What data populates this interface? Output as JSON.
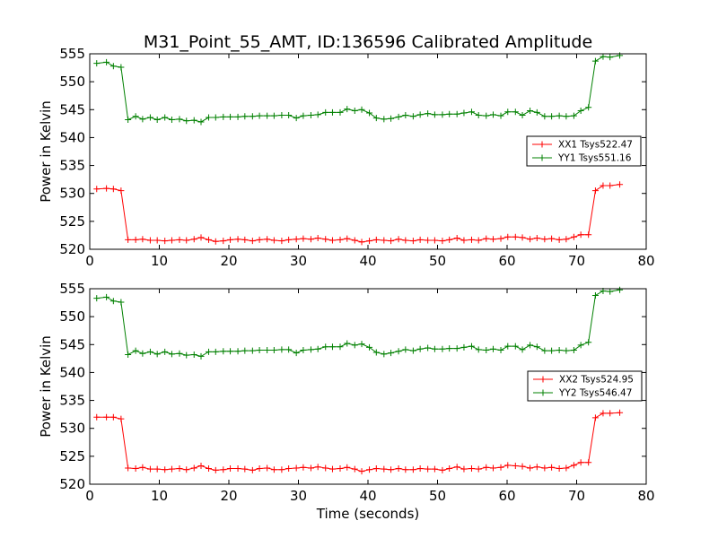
{
  "figure": {
    "title": "M31_Point_55_AMT, ID:136596 Calibrated Amplitude",
    "xlabel": "Time (seconds)"
  },
  "chart_data": [
    {
      "type": "line",
      "xlabel": "",
      "ylabel": "Power in Kelvin",
      "xlim": [
        0,
        80
      ],
      "ylim": [
        520,
        555
      ],
      "xticks": [
        "0",
        "10",
        "20",
        "30",
        "40",
        "50",
        "60",
        "70",
        "80"
      ],
      "yticks": [
        "520",
        "525",
        "530",
        "535",
        "540",
        "545",
        "550",
        "555"
      ],
      "grid": false,
      "legend": "center-right",
      "x": [
        1.0,
        2.4,
        3.4,
        4.5,
        5.5,
        6.6,
        7.6,
        8.7,
        9.7,
        10.8,
        11.8,
        12.9,
        13.9,
        15.0,
        16.0,
        17.1,
        18.1,
        19.2,
        20.2,
        21.3,
        22.3,
        23.4,
        24.4,
        25.5,
        26.5,
        27.6,
        28.6,
        29.7,
        30.7,
        31.8,
        32.8,
        33.9,
        34.9,
        36.0,
        37.0,
        38.1,
        39.1,
        40.2,
        41.2,
        42.3,
        43.3,
        44.4,
        45.4,
        46.5,
        47.5,
        48.6,
        49.6,
        50.7,
        51.7,
        52.8,
        53.8,
        54.9,
        55.9,
        57.0,
        58.0,
        59.1,
        60.1,
        61.2,
        62.2,
        63.3,
        64.3,
        65.4,
        66.4,
        67.5,
        68.5,
        69.6,
        70.6,
        71.7,
        72.7,
        73.8,
        74.8,
        76.2
      ],
      "series": [
        {
          "name": "XX1 Tsys522.47",
          "color": "#ff0000",
          "values": [
            530.8,
            530.9,
            530.8,
            530.5,
            521.7,
            521.7,
            521.8,
            521.6,
            521.6,
            521.5,
            521.6,
            521.7,
            521.6,
            521.8,
            522.1,
            521.7,
            521.4,
            521.5,
            521.7,
            521.8,
            521.7,
            521.5,
            521.7,
            521.8,
            521.6,
            521.5,
            521.7,
            521.8,
            521.9,
            521.8,
            522.0,
            521.8,
            521.6,
            521.7,
            521.9,
            521.6,
            521.3,
            521.5,
            521.7,
            521.6,
            521.5,
            521.8,
            521.6,
            521.5,
            521.7,
            521.6,
            521.6,
            521.5,
            521.7,
            522.0,
            521.6,
            521.7,
            521.6,
            521.9,
            521.8,
            521.9,
            522.2,
            522.2,
            522.1,
            521.8,
            522.0,
            521.8,
            521.9,
            521.7,
            521.8,
            522.2,
            522.6,
            522.6,
            530.5,
            531.4,
            531.4,
            531.6
          ]
        },
        {
          "name": "YY1 Tsys551.16",
          "color": "#008000",
          "values": [
            553.3,
            553.5,
            552.8,
            552.6,
            543.2,
            543.8,
            543.3,
            543.6,
            543.2,
            543.6,
            543.2,
            543.3,
            543.0,
            543.1,
            542.8,
            543.6,
            543.6,
            543.7,
            543.7,
            543.7,
            543.8,
            543.8,
            543.9,
            543.9,
            543.9,
            544.0,
            544.0,
            543.5,
            543.9,
            544.0,
            544.1,
            544.5,
            544.5,
            544.5,
            545.1,
            544.8,
            545.0,
            544.4,
            543.5,
            543.3,
            543.4,
            543.7,
            544.0,
            543.8,
            544.1,
            544.3,
            544.1,
            544.1,
            544.2,
            544.2,
            544.4,
            544.6,
            544.0,
            543.9,
            544.1,
            543.9,
            544.6,
            544.6,
            544.0,
            544.8,
            544.5,
            543.8,
            543.8,
            543.9,
            543.8,
            543.9,
            544.8,
            545.4,
            553.7,
            554.5,
            554.4,
            554.7
          ]
        }
      ]
    },
    {
      "type": "line",
      "xlabel": "Time (seconds)",
      "ylabel": "Power in Kelvin",
      "xlim": [
        0,
        80
      ],
      "ylim": [
        520,
        555
      ],
      "xticks": [
        "0",
        "10",
        "20",
        "30",
        "40",
        "50",
        "60",
        "70",
        "80"
      ],
      "yticks": [
        "520",
        "525",
        "530",
        "535",
        "540",
        "545",
        "550",
        "555"
      ],
      "grid": false,
      "legend": "center-right",
      "x": [
        1.0,
        2.4,
        3.4,
        4.5,
        5.5,
        6.6,
        7.6,
        8.7,
        9.7,
        10.8,
        11.8,
        12.9,
        13.9,
        15.0,
        16.0,
        17.1,
        18.1,
        19.2,
        20.2,
        21.3,
        22.3,
        23.4,
        24.4,
        25.5,
        26.5,
        27.6,
        28.6,
        29.7,
        30.7,
        31.8,
        32.8,
        33.9,
        34.9,
        36.0,
        37.0,
        38.1,
        39.1,
        40.2,
        41.2,
        42.3,
        43.3,
        44.4,
        45.4,
        46.5,
        47.5,
        48.6,
        49.6,
        50.7,
        51.7,
        52.8,
        53.8,
        54.9,
        55.9,
        57.0,
        58.0,
        59.1,
        60.1,
        61.2,
        62.2,
        63.3,
        64.3,
        65.4,
        66.4,
        67.5,
        68.5,
        69.6,
        70.6,
        71.7,
        72.7,
        73.8,
        74.8,
        76.2
      ],
      "series": [
        {
          "name": "XX2 Tsys524.95",
          "color": "#ff0000",
          "values": [
            532.0,
            532.0,
            532.0,
            531.7,
            522.9,
            522.8,
            523.0,
            522.7,
            522.7,
            522.6,
            522.7,
            522.8,
            522.6,
            522.9,
            523.3,
            522.8,
            522.5,
            522.6,
            522.8,
            522.8,
            522.7,
            522.5,
            522.8,
            522.9,
            522.6,
            522.6,
            522.8,
            522.9,
            523.0,
            522.9,
            523.1,
            522.9,
            522.7,
            522.8,
            523.0,
            522.7,
            522.3,
            522.6,
            522.8,
            522.7,
            522.6,
            522.8,
            522.6,
            522.6,
            522.8,
            522.7,
            522.7,
            522.5,
            522.8,
            523.1,
            522.7,
            522.8,
            522.7,
            523.0,
            522.9,
            523.0,
            523.4,
            523.3,
            523.2,
            522.9,
            523.1,
            522.9,
            523.0,
            522.8,
            522.9,
            523.4,
            523.9,
            523.9,
            531.9,
            532.7,
            532.7,
            532.8
          ]
        },
        {
          "name": "YY2 Tsys546.47",
          "color": "#008000",
          "values": [
            553.3,
            553.5,
            552.8,
            552.6,
            543.2,
            543.9,
            543.4,
            543.7,
            543.3,
            543.7,
            543.3,
            543.4,
            543.1,
            543.2,
            542.9,
            543.7,
            543.7,
            543.8,
            543.8,
            543.8,
            543.9,
            543.9,
            544.0,
            544.0,
            544.0,
            544.1,
            544.1,
            543.5,
            544.0,
            544.1,
            544.2,
            544.6,
            544.6,
            544.6,
            545.2,
            544.9,
            545.1,
            544.5,
            543.6,
            543.3,
            543.5,
            543.8,
            544.1,
            543.9,
            544.2,
            544.4,
            544.2,
            544.2,
            544.3,
            544.3,
            544.5,
            544.7,
            544.1,
            544.0,
            544.2,
            544.0,
            544.7,
            544.7,
            544.1,
            544.9,
            544.6,
            543.9,
            543.9,
            544.0,
            543.9,
            544.0,
            544.9,
            545.4,
            553.8,
            554.6,
            554.5,
            554.8
          ]
        }
      ]
    }
  ]
}
